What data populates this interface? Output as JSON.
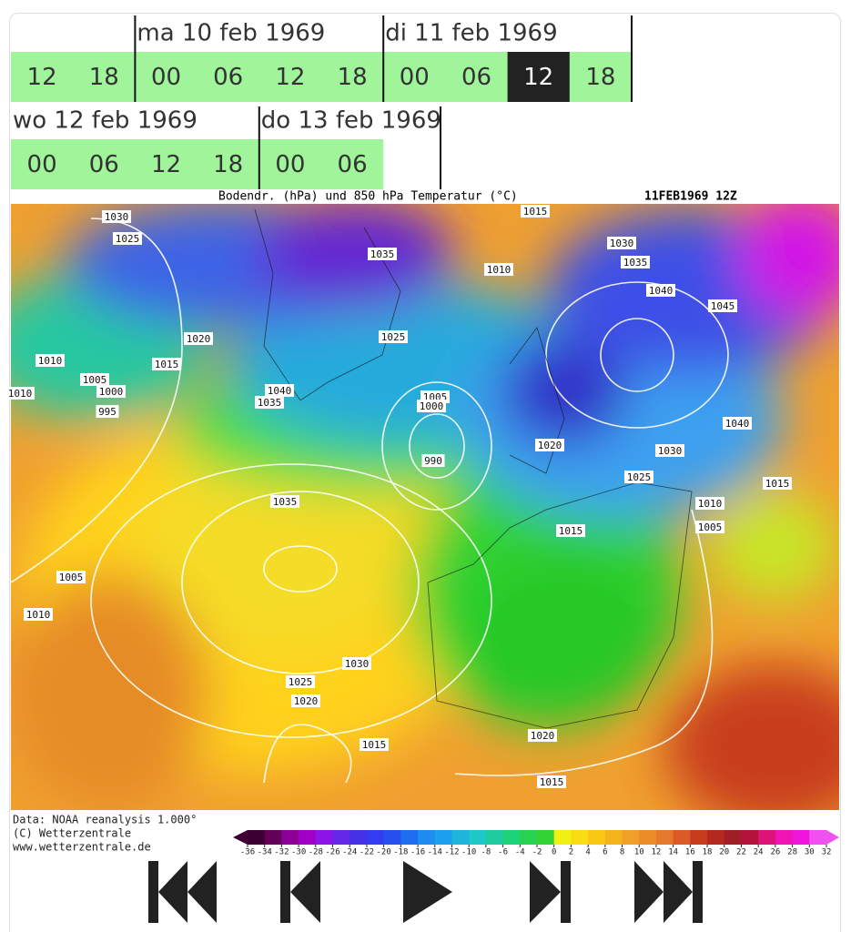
{
  "timeline": {
    "rows": [
      {
        "groups": [
          {
            "hours": [
              "12",
              "18"
            ]
          },
          {
            "day": "ma 10 feb 1969",
            "hours": [
              "00",
              "06",
              "12",
              "18"
            ]
          },
          {
            "day": "di 11 feb 1969",
            "hours": [
              "00",
              "06",
              "12",
              "18"
            ],
            "selected": 2
          }
        ]
      },
      {
        "groups": [
          {
            "day": "wo 12 feb 1969",
            "hours": [
              "00",
              "06",
              "12",
              "18"
            ]
          },
          {
            "day": "do 13 feb 1969",
            "hours": [
              "00",
              "06"
            ]
          }
        ]
      }
    ]
  },
  "map": {
    "title": "Bodendr. (hPa) und 850 hPa Temperatur (°C)",
    "timestamp": "11FEB1969 12Z",
    "isobar_labels": [
      "1030",
      "1025",
      "1015",
      "1035",
      "1010",
      "1030",
      "1035",
      "1040",
      "1045",
      "1020",
      "1025",
      "1010",
      "1015",
      "1005",
      "1000",
      "1010",
      "1040",
      "1035",
      "1005",
      "1000",
      "995",
      "1020",
      "1040",
      "1030",
      "990",
      "1025",
      "1015",
      "1010",
      "1035",
      "1005",
      "1015",
      "1005",
      "1010",
      "1030",
      "1025",
      "1020",
      "1020",
      "1015",
      "1015"
    ],
    "footer": [
      "Data: NOAA reanalysis 1.000°",
      "(C) Wetterzentrale",
      "www.wetterzentrale.de"
    ],
    "colorbar": {
      "ticks": [
        -36,
        -34,
        -32,
        -30,
        -28,
        -26,
        -24,
        -22,
        -20,
        -18,
        -16,
        -14,
        -12,
        -10,
        -8,
        -6,
        -4,
        -2,
        0,
        2,
        4,
        6,
        8,
        10,
        12,
        14,
        16,
        18,
        20,
        22,
        24,
        26,
        28,
        30,
        32
      ]
    }
  }
}
